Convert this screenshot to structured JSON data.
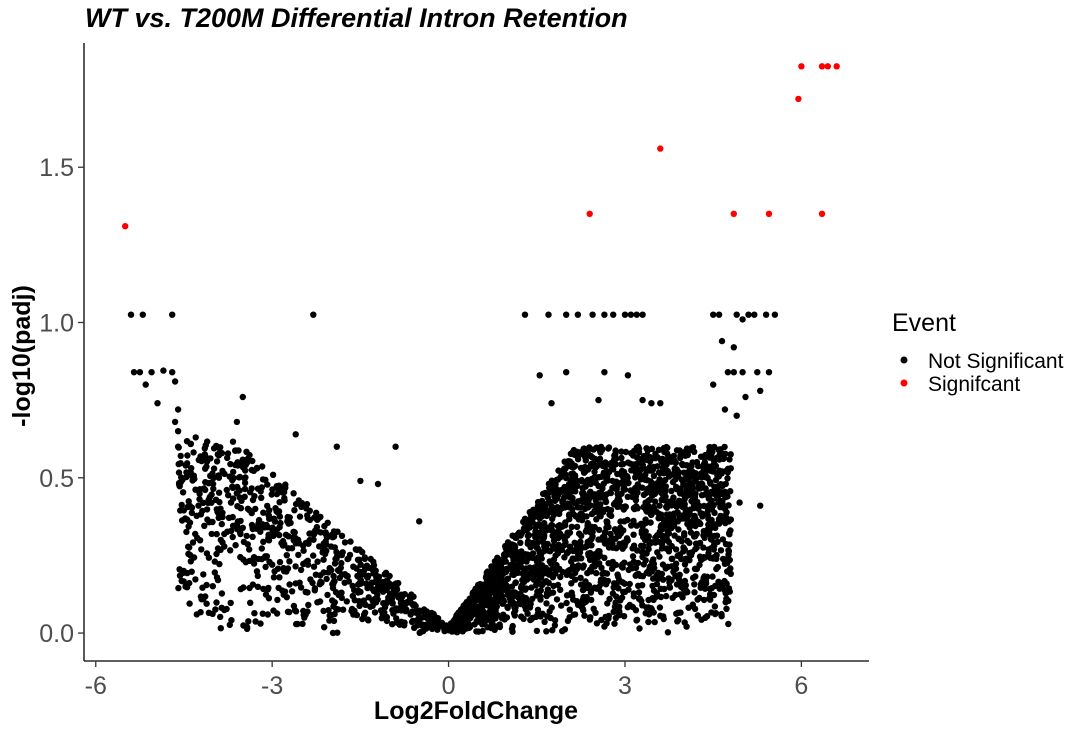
{
  "chart_data": {
    "type": "scatter",
    "title": "WT vs. T200M Differential Intron Retention",
    "xlabel": "Log2FoldChange",
    "ylabel": "-log10(padj)",
    "xlim": [
      -6.2,
      7.15
    ],
    "ylim": [
      -0.09,
      1.9
    ],
    "xticks": [
      -6,
      -3,
      0,
      3,
      6
    ],
    "xtick_labels": [
      "-6",
      "-3",
      "0",
      "3",
      "6"
    ],
    "yticks": [
      0.0,
      0.5,
      1.0,
      1.5
    ],
    "ytick_labels": [
      "0.0",
      "0.5",
      "1.0",
      "1.5"
    ],
    "grid": false,
    "legend": {
      "title": "Event",
      "position": "right"
    },
    "colors": {
      "not_significant": "#000000",
      "significant": "#ff0000"
    },
    "series": [
      {
        "name": "Not Significant",
        "color": "#000000",
        "points": [
          [
            -5.4,
            1.025
          ],
          [
            -5.2,
            1.025
          ],
          [
            -4.7,
            1.025
          ],
          [
            -2.3,
            1.025
          ],
          [
            -5.35,
            0.84
          ],
          [
            -5.25,
            0.84
          ],
          [
            -5.05,
            0.84
          ],
          [
            -4.85,
            0.845
          ],
          [
            -4.7,
            0.84
          ],
          [
            -4.65,
            0.81
          ],
          [
            -5.15,
            0.8
          ],
          [
            -4.95,
            0.74
          ],
          [
            -4.6,
            0.72
          ],
          [
            -4.65,
            0.68
          ],
          [
            -4.6,
            0.65
          ],
          [
            -4.6,
            0.6
          ],
          [
            -4.3,
            0.63
          ],
          [
            -3.5,
            0.76
          ],
          [
            -3.6,
            0.68
          ],
          [
            -2.6,
            0.64
          ],
          [
            -1.9,
            0.6
          ],
          [
            -0.9,
            0.6
          ],
          [
            -1.5,
            0.49
          ],
          [
            -1.2,
            0.48
          ],
          [
            -0.5,
            0.36
          ],
          [
            -3.0,
            0.22
          ],
          [
            -2.6,
            0.16
          ],
          [
            -1.8,
            0.26
          ],
          [
            2.0,
            1.025
          ],
          [
            2.2,
            1.025
          ],
          [
            2.45,
            1.025
          ],
          [
            2.65,
            1.025
          ],
          [
            2.8,
            1.025
          ],
          [
            3.0,
            1.025
          ],
          [
            3.1,
            1.025
          ],
          [
            3.2,
            1.025
          ],
          [
            3.3,
            1.025
          ],
          [
            1.3,
            1.025
          ],
          [
            1.7,
            1.025
          ],
          [
            4.5,
            1.025
          ],
          [
            4.6,
            1.025
          ],
          [
            4.9,
            1.025
          ],
          [
            5.1,
            1.025
          ],
          [
            5.2,
            1.025
          ],
          [
            5.4,
            1.025
          ],
          [
            5.55,
            1.025
          ],
          [
            5.0,
            1.01
          ],
          [
            2.0,
            0.84
          ],
          [
            2.65,
            0.84
          ],
          [
            3.05,
            0.83
          ],
          [
            1.55,
            0.83
          ],
          [
            4.5,
            0.8
          ],
          [
            4.75,
            0.84
          ],
          [
            4.85,
            0.84
          ],
          [
            5.0,
            0.84
          ],
          [
            5.25,
            0.84
          ],
          [
            5.45,
            0.84
          ],
          [
            4.65,
            0.94
          ],
          [
            4.85,
            0.92
          ],
          [
            1.75,
            0.74
          ],
          [
            2.55,
            0.75
          ],
          [
            3.3,
            0.75
          ],
          [
            3.45,
            0.74
          ],
          [
            3.6,
            0.74
          ],
          [
            5.3,
            0.78
          ],
          [
            5.05,
            0.76
          ],
          [
            4.9,
            0.7
          ],
          [
            4.7,
            0.72
          ],
          [
            4.95,
            0.42
          ],
          [
            4.7,
            0.4
          ],
          [
            5.3,
            0.41
          ],
          [
            3.9,
            0.36
          ],
          [
            4.1,
            0.34
          ],
          [
            3.55,
            0.26
          ],
          [
            3.75,
            0.27
          ],
          [
            2.6,
            0.21
          ],
          [
            2.2,
            0.24
          ],
          [
            1.3,
            0.1
          ]
        ]
      },
      {
        "name": "Signifcant",
        "color": "#ff0000",
        "points": [
          [
            -5.5,
            1.31
          ],
          [
            2.4,
            1.35
          ],
          [
            3.6,
            1.56
          ],
          [
            4.85,
            1.35
          ],
          [
            5.45,
            1.35
          ],
          [
            6.35,
            1.35
          ],
          [
            5.95,
            1.72
          ],
          [
            6.0,
            1.825
          ],
          [
            6.35,
            1.825
          ],
          [
            6.45,
            1.825
          ],
          [
            6.6,
            1.825
          ]
        ]
      }
    ]
  }
}
